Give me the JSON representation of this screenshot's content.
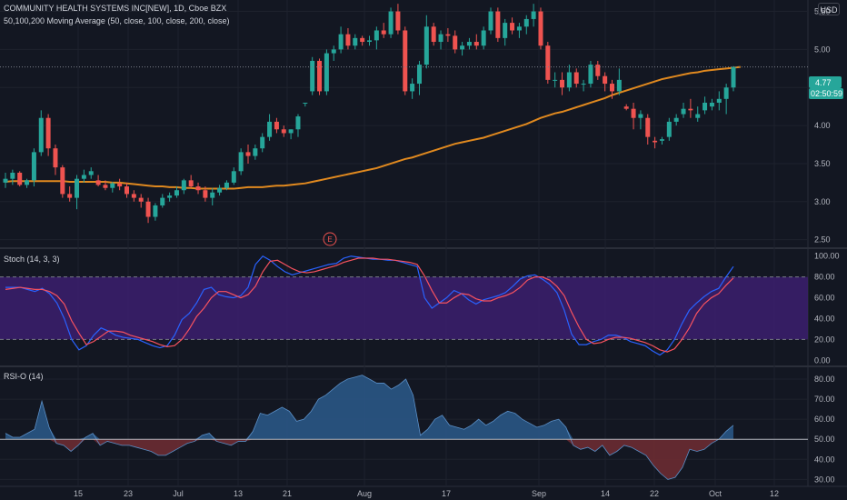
{
  "header": {
    "title": "COMMUNITY HEALTH SYSTEMS INC[NEW], 1D, Cboe BZX",
    "indicator": "50,100,200 Moving Average (50, close, 100, close, 200, close)",
    "currency": "USD"
  },
  "price_tag": {
    "price": "4.77",
    "countdown": "02:50:59"
  },
  "earnings_marker": "E",
  "panes": {
    "price_ticks": [
      "5.50",
      "5.00",
      "4.50",
      "4.00",
      "3.50",
      "3.00",
      "2.50"
    ],
    "stoch_title": "Stoch (14, 3, 3)",
    "stoch_ticks": [
      "100.00",
      "80.00",
      "60.00",
      "40.00",
      "20.00",
      "0.00"
    ],
    "rsi_title": "RSI-O (14)",
    "rsi_ticks": [
      "80.00",
      "70.00",
      "60.00",
      "50.00",
      "40.00",
      "30.00"
    ]
  },
  "x_labels": [
    "15",
    "23",
    "Jul",
    "13",
    "21",
    "Aug",
    "17",
    "Sep",
    "14",
    "22",
    "Oct",
    "12"
  ],
  "colors": {
    "up": "#26a69a",
    "down": "#ef5350",
    "ma": "#e0891f",
    "k": "#2962ff",
    "d": "#f7525f",
    "band": "#3c1f6e",
    "rsi_up": "#2a5785",
    "rsi_down": "#6b2b32"
  },
  "chart_data": [
    {
      "type": "candlestick",
      "title": "COMMUNITY HEALTH SYSTEMS INC[NEW], 1D, Cboe BZX",
      "ylim": [
        2.4,
        5.65
      ],
      "candles": [
        [
          3.25,
          3.38,
          3.18,
          3.3
        ],
        [
          3.3,
          3.42,
          3.22,
          3.38
        ],
        [
          3.38,
          3.4,
          3.2,
          3.22
        ],
        [
          3.22,
          3.3,
          3.18,
          3.28
        ],
        [
          3.28,
          3.7,
          3.2,
          3.65
        ],
        [
          3.65,
          4.2,
          3.6,
          4.1
        ],
        [
          4.1,
          4.15,
          3.6,
          3.7
        ],
        [
          3.7,
          3.75,
          3.35,
          3.45
        ],
        [
          3.45,
          3.48,
          3.05,
          3.1
        ],
        [
          3.1,
          3.2,
          3.0,
          3.05
        ],
        [
          3.05,
          3.35,
          2.9,
          3.3
        ],
        [
          3.3,
          3.42,
          3.25,
          3.35
        ],
        [
          3.35,
          3.45,
          3.3,
          3.4
        ],
        [
          3.28,
          3.35,
          3.2,
          3.22
        ],
        [
          3.22,
          3.28,
          3.15,
          3.18
        ],
        [
          3.18,
          3.26,
          3.12,
          3.24
        ],
        [
          3.24,
          3.3,
          3.15,
          3.2
        ],
        [
          3.2,
          3.25,
          3.05,
          3.1
        ],
        [
          3.1,
          3.15,
          3.0,
          3.05
        ],
        [
          3.05,
          3.1,
          2.92,
          3.0
        ],
        [
          3.0,
          3.05,
          2.72,
          2.8
        ],
        [
          2.8,
          2.98,
          2.75,
          2.95
        ],
        [
          2.95,
          3.1,
          2.92,
          3.05
        ],
        [
          3.05,
          3.12,
          3.0,
          3.08
        ],
        [
          3.08,
          3.2,
          3.05,
          3.15
        ],
        [
          3.15,
          3.3,
          3.1,
          3.28
        ],
        [
          3.28,
          3.35,
          3.18,
          3.2
        ],
        [
          3.2,
          3.25,
          3.1,
          3.15
        ],
        [
          3.15,
          3.2,
          3.0,
          3.05
        ],
        [
          3.05,
          3.18,
          2.95,
          3.12
        ],
        [
          3.12,
          3.22,
          3.08,
          3.18
        ],
        [
          3.18,
          3.28,
          3.15,
          3.25
        ],
        [
          3.25,
          3.45,
          3.22,
          3.4
        ],
        [
          3.4,
          3.7,
          3.35,
          3.65
        ],
        [
          3.65,
          3.75,
          3.5,
          3.6
        ],
        [
          3.6,
          3.75,
          3.55,
          3.7
        ],
        [
          3.7,
          3.9,
          3.65,
          3.85
        ],
        [
          3.85,
          4.15,
          3.8,
          4.05
        ],
        [
          4.05,
          4.1,
          3.9,
          3.95
        ],
        [
          3.95,
          4.0,
          3.85,
          3.9
        ],
        [
          3.9,
          3.95,
          3.82,
          3.95
        ],
        [
          3.95,
          4.15,
          3.85,
          4.12
        ],
        [
          4.3,
          4.3,
          4.25,
          4.3
        ],
        [
          4.45,
          4.9,
          4.4,
          4.85
        ],
        [
          4.85,
          4.88,
          4.4,
          4.45
        ],
        [
          4.45,
          5.0,
          4.4,
          4.95
        ],
        [
          4.95,
          5.05,
          4.85,
          5.0
        ],
        [
          5.0,
          5.3,
          4.95,
          5.2
        ],
        [
          5.2,
          5.28,
          5.0,
          5.05
        ],
        [
          5.05,
          5.2,
          5.0,
          5.15
        ],
        [
          5.15,
          5.18,
          5.05,
          5.1
        ],
        [
          5.1,
          5.18,
          5.05,
          5.12
        ],
        [
          5.12,
          5.3,
          5.0,
          5.25
        ],
        [
          5.25,
          5.35,
          5.15,
          5.2
        ],
        [
          5.2,
          5.55,
          5.15,
          5.5
        ],
        [
          5.5,
          5.6,
          5.2,
          5.25
        ],
        [
          5.25,
          5.3,
          4.4,
          4.45
        ],
        [
          4.45,
          4.62,
          4.35,
          4.55
        ],
        [
          4.55,
          4.85,
          4.4,
          4.8
        ],
        [
          4.8,
          5.45,
          4.75,
          5.3
        ],
        [
          5.3,
          5.35,
          5.05,
          5.1
        ],
        [
          5.1,
          5.25,
          5.0,
          5.2
        ],
        [
          5.2,
          5.28,
          5.1,
          5.18
        ],
        [
          5.18,
          5.25,
          4.95,
          5.0
        ],
        [
          5.0,
          5.1,
          4.92,
          5.05
        ],
        [
          5.05,
          5.15,
          5.0,
          5.1
        ],
        [
          5.1,
          5.2,
          5.0,
          5.05
        ],
        [
          5.05,
          5.3,
          5.0,
          5.25
        ],
        [
          5.25,
          5.55,
          5.2,
          5.5
        ],
        [
          5.5,
          5.55,
          5.1,
          5.15
        ],
        [
          5.15,
          5.4,
          5.05,
          5.35
        ],
        [
          5.35,
          5.42,
          5.2,
          5.25
        ],
        [
          5.25,
          5.35,
          5.15,
          5.3
        ],
        [
          5.3,
          5.45,
          5.2,
          5.4
        ],
        [
          5.4,
          5.6,
          5.3,
          5.5
        ],
        [
          5.5,
          5.55,
          5.0,
          5.05
        ],
        [
          5.05,
          5.1,
          4.55,
          4.6
        ],
        [
          4.6,
          4.7,
          4.5,
          4.6
        ],
        [
          4.6,
          4.7,
          4.4,
          4.5
        ],
        [
          4.5,
          4.8,
          4.45,
          4.7
        ],
        [
          4.7,
          4.75,
          4.5,
          4.55
        ],
        [
          4.55,
          4.6,
          4.45,
          4.55
        ],
        [
          4.55,
          4.85,
          4.5,
          4.8
        ],
        [
          4.8,
          4.85,
          4.6,
          4.65
        ],
        [
          4.65,
          4.7,
          4.45,
          4.55
        ],
        [
          4.55,
          4.6,
          4.35,
          4.45
        ],
        [
          4.45,
          4.75,
          4.4,
          4.6
        ],
        [
          4.25,
          4.28,
          4.2,
          4.22
        ],
        [
          4.22,
          4.3,
          3.95,
          4.1
        ],
        [
          4.1,
          4.2,
          3.95,
          4.15
        ],
        [
          4.1,
          4.15,
          3.75,
          3.85
        ],
        [
          3.8,
          3.85,
          3.7,
          3.78
        ],
        [
          3.8,
          3.85,
          3.75,
          3.82
        ],
        [
          3.85,
          4.1,
          3.8,
          4.05
        ],
        [
          4.05,
          4.15,
          4.0,
          4.1
        ],
        [
          4.15,
          4.3,
          4.1,
          4.22
        ],
        [
          4.22,
          4.35,
          4.1,
          4.2
        ],
        [
          4.1,
          4.25,
          4.05,
          4.15
        ],
        [
          4.2,
          4.38,
          4.15,
          4.3
        ],
        [
          4.25,
          4.35,
          4.2,
          4.3
        ],
        [
          4.3,
          4.45,
          4.2,
          4.35
        ],
        [
          4.35,
          4.55,
          4.15,
          4.5
        ],
        [
          4.5,
          4.78,
          4.45,
          4.77
        ]
      ],
      "series": [
        {
          "name": "50,100,200 Moving Average",
          "values": [
            3.26,
            3.27,
            3.27,
            3.27,
            3.27,
            3.27,
            3.27,
            3.27,
            3.27,
            3.26,
            3.26,
            3.26,
            3.26,
            3.26,
            3.26,
            3.25,
            3.25,
            3.24,
            3.23,
            3.22,
            3.21,
            3.2,
            3.2,
            3.19,
            3.19,
            3.18,
            3.18,
            3.17,
            3.17,
            3.17,
            3.17,
            3.17,
            3.17,
            3.18,
            3.19,
            3.19,
            3.19,
            3.2,
            3.21,
            3.21,
            3.22,
            3.23,
            3.24,
            3.26,
            3.28,
            3.3,
            3.32,
            3.34,
            3.36,
            3.38,
            3.4,
            3.42,
            3.44,
            3.47,
            3.5,
            3.53,
            3.56,
            3.58,
            3.61,
            3.64,
            3.67,
            3.7,
            3.73,
            3.76,
            3.78,
            3.8,
            3.82,
            3.84,
            3.87,
            3.9,
            3.93,
            3.96,
            3.99,
            4.02,
            4.06,
            4.1,
            4.13,
            4.16,
            4.18,
            4.21,
            4.24,
            4.27,
            4.3,
            4.33,
            4.36,
            4.4,
            4.43,
            4.46,
            4.49,
            4.52,
            4.55,
            4.58,
            4.61,
            4.63,
            4.65,
            4.67,
            4.69,
            4.7,
            4.72,
            4.73,
            4.74,
            4.75,
            4.76,
            4.77
          ]
        }
      ]
    },
    {
      "type": "line",
      "title": "Stoch (14, 3, 3)",
      "ylim": [
        -5,
        105
      ],
      "band": [
        20,
        80
      ],
      "series": [
        {
          "name": "K",
          "values": [
            70,
            70,
            70,
            68,
            66,
            69,
            64,
            55,
            40,
            20,
            10,
            14,
            24,
            31,
            28,
            24,
            22,
            21,
            20,
            17,
            14,
            12,
            14,
            24,
            39,
            45,
            55,
            68,
            70,
            63,
            61,
            60,
            62,
            70,
            92,
            100,
            96,
            90,
            85,
            82,
            84,
            86,
            88,
            90,
            92,
            93,
            98,
            100,
            99,
            98,
            97,
            97,
            96,
            96,
            94,
            92,
            90,
            60,
            50,
            55,
            60,
            67,
            64,
            58,
            54,
            58,
            60,
            62,
            65,
            71,
            78,
            81,
            82,
            78,
            73,
            65,
            48,
            25,
            15,
            15,
            18,
            20,
            24,
            24,
            22,
            18,
            16,
            14,
            9,
            5,
            10,
            20,
            35,
            48,
            55,
            61,
            66,
            69,
            80,
            90
          ]
        },
        {
          "name": "D",
          "values": [
            68,
            69,
            70,
            69,
            68,
            68,
            66,
            62,
            54,
            38,
            26,
            15,
            18,
            23,
            28,
            28,
            27,
            24,
            22,
            20,
            18,
            15,
            13,
            14,
            20,
            30,
            42,
            50,
            60,
            66,
            66,
            63,
            60,
            63,
            71,
            85,
            95,
            96,
            92,
            88,
            85,
            84,
            85,
            87,
            89,
            91,
            94,
            96,
            98,
            98,
            98,
            97,
            97,
            96,
            95,
            94,
            92,
            81,
            67,
            55,
            55,
            60,
            64,
            63,
            59,
            57,
            57,
            60,
            62,
            65,
            70,
            77,
            80,
            80,
            77,
            71,
            62,
            46,
            32,
            20,
            16,
            17,
            20,
            22,
            22,
            21,
            19,
            17,
            14,
            10,
            8,
            11,
            20,
            31,
            45,
            54,
            60,
            64,
            72,
            79
          ]
        }
      ]
    },
    {
      "type": "area",
      "title": "RSI-O (14)",
      "ylim": [
        27,
        85
      ],
      "baseline": 50,
      "series": [
        {
          "name": "RSI-O (14)",
          "values": [
            53,
            51,
            51,
            53,
            55,
            69,
            56,
            48,
            47,
            44,
            47,
            51,
            53,
            47,
            49,
            48,
            47,
            47,
            46,
            45,
            44,
            42,
            42,
            44,
            46,
            48,
            49,
            52,
            53,
            49,
            48,
            47,
            49,
            49,
            54,
            63,
            62,
            64,
            66,
            64,
            59,
            60,
            64,
            70,
            72,
            75,
            78,
            80,
            81,
            82,
            80,
            78,
            78,
            75,
            77,
            80,
            72,
            52,
            55,
            60,
            62,
            57,
            56,
            55,
            57,
            60,
            57,
            59,
            62,
            64,
            63,
            60,
            58,
            56,
            57,
            59,
            60,
            56,
            47,
            45,
            46,
            44,
            47,
            42,
            44,
            47,
            46,
            44,
            42,
            37,
            33,
            30,
            31,
            36,
            45,
            44,
            45,
            48,
            50,
            54,
            57
          ]
        }
      ]
    }
  ]
}
